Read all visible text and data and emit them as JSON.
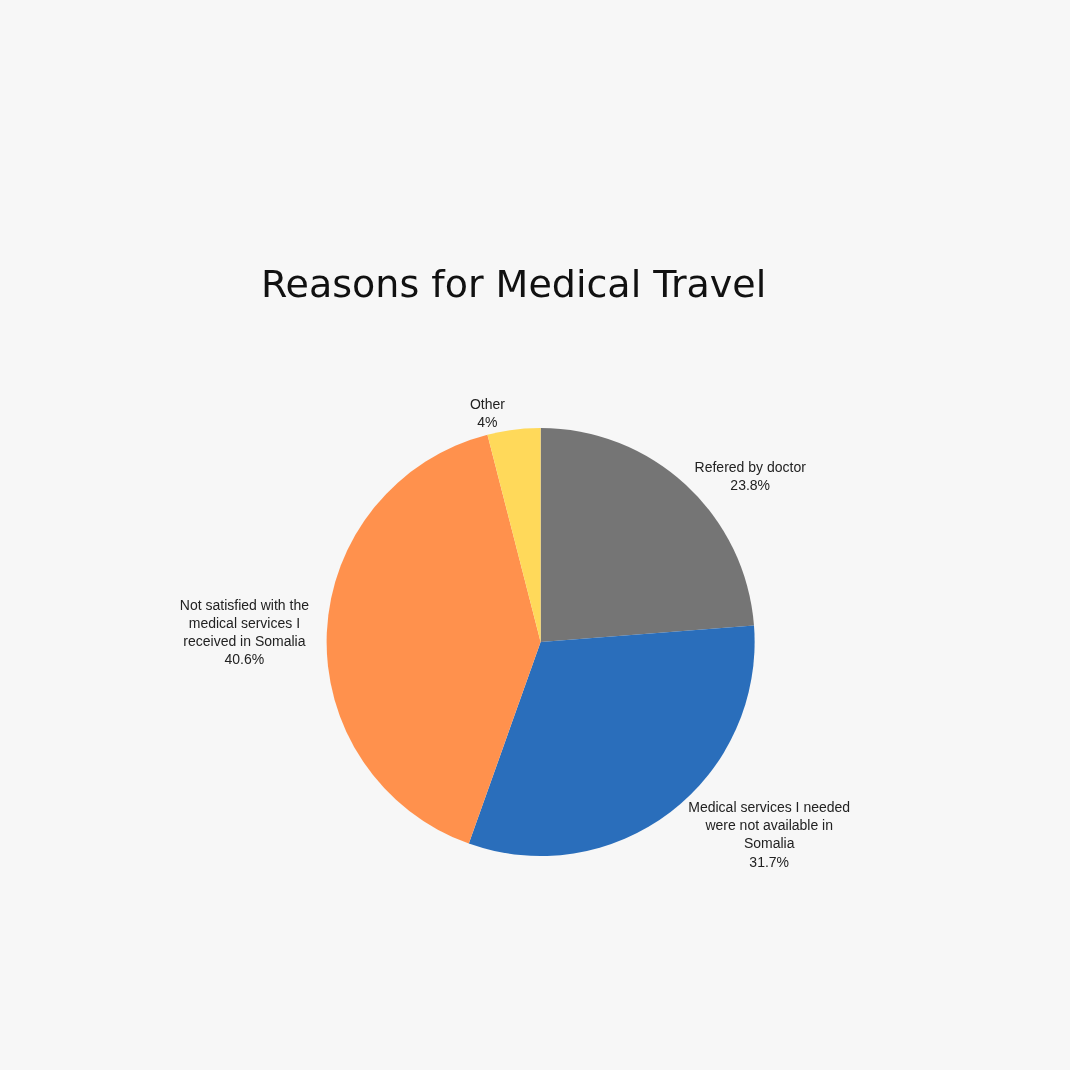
{
  "chart_data": {
    "type": "pie",
    "title": "Reasons for Medical Travel",
    "categories": [
      "Refered by doctor",
      "Medical services I needed were not available in Somalia",
      "Not satisfied with the medical services I received in Somalia",
      "Other"
    ],
    "values": [
      23.8,
      31.7,
      40.6,
      4
    ],
    "value_labels": [
      "23.8%",
      "31.7%",
      "40.6%",
      "4%"
    ],
    "colors": [
      "#757575",
      "#2a6ebb",
      "#ff914d",
      "#ffd95a"
    ]
  }
}
